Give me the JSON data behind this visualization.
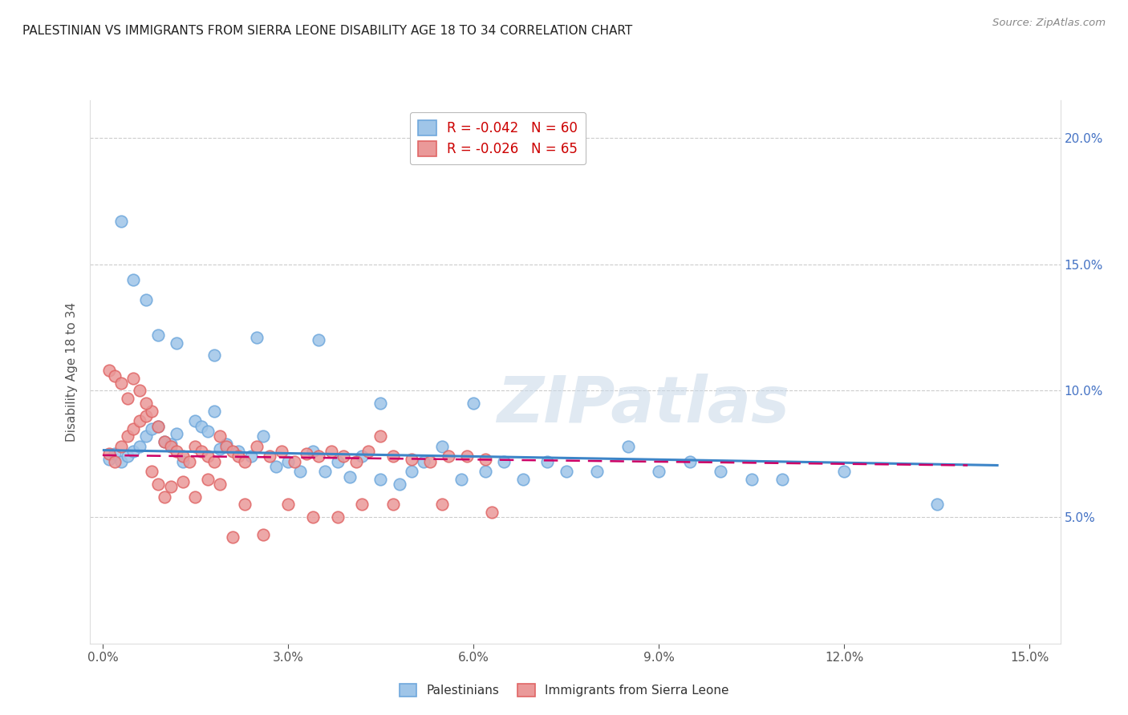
{
  "title": "PALESTINIAN VS IMMIGRANTS FROM SIERRA LEONE DISABILITY AGE 18 TO 34 CORRELATION CHART",
  "source": "Source: ZipAtlas.com",
  "ylabel": "Disability Age 18 to 34",
  "xlim": [
    -0.002,
    0.155
  ],
  "ylim": [
    0.0,
    0.215
  ],
  "xticks": [
    0.0,
    0.03,
    0.06,
    0.09,
    0.12,
    0.15
  ],
  "yticks": [
    0.05,
    0.1,
    0.15,
    0.2
  ],
  "blue_color": "#9fc5e8",
  "blue_edge_color": "#6fa8dc",
  "pink_color": "#ea9999",
  "pink_edge_color": "#e06666",
  "blue_line_color": "#3d85c8",
  "pink_line_color": "#cc0066",
  "legend_r_color": "#cc0000",
  "legend_n_color": "#0000cc",
  "blue_scatter_x": [
    0.001,
    0.002,
    0.003,
    0.004,
    0.005,
    0.006,
    0.007,
    0.008,
    0.009,
    0.01,
    0.011,
    0.012,
    0.013,
    0.015,
    0.016,
    0.017,
    0.018,
    0.019,
    0.02,
    0.022,
    0.024,
    0.026,
    0.028,
    0.03,
    0.032,
    0.034,
    0.036,
    0.038,
    0.04,
    0.042,
    0.045,
    0.048,
    0.05,
    0.052,
    0.055,
    0.058,
    0.062,
    0.065,
    0.068,
    0.072,
    0.075,
    0.08,
    0.085,
    0.09,
    0.095,
    0.1,
    0.105,
    0.11,
    0.12,
    0.135,
    0.003,
    0.005,
    0.007,
    0.009,
    0.012,
    0.018,
    0.025,
    0.035,
    0.045,
    0.06
  ],
  "blue_scatter_y": [
    0.073,
    0.075,
    0.072,
    0.074,
    0.076,
    0.078,
    0.082,
    0.085,
    0.086,
    0.08,
    0.079,
    0.083,
    0.072,
    0.088,
    0.086,
    0.084,
    0.092,
    0.077,
    0.079,
    0.076,
    0.074,
    0.082,
    0.07,
    0.072,
    0.068,
    0.076,
    0.068,
    0.072,
    0.066,
    0.074,
    0.065,
    0.063,
    0.068,
    0.072,
    0.078,
    0.065,
    0.068,
    0.072,
    0.065,
    0.072,
    0.068,
    0.068,
    0.078,
    0.068,
    0.072,
    0.068,
    0.065,
    0.065,
    0.068,
    0.055,
    0.167,
    0.144,
    0.136,
    0.122,
    0.119,
    0.114,
    0.121,
    0.12,
    0.095,
    0.095
  ],
  "pink_scatter_x": [
    0.001,
    0.002,
    0.003,
    0.004,
    0.005,
    0.006,
    0.007,
    0.008,
    0.009,
    0.01,
    0.011,
    0.012,
    0.013,
    0.014,
    0.015,
    0.016,
    0.017,
    0.018,
    0.019,
    0.02,
    0.021,
    0.022,
    0.023,
    0.025,
    0.027,
    0.029,
    0.031,
    0.033,
    0.035,
    0.037,
    0.039,
    0.041,
    0.043,
    0.045,
    0.047,
    0.05,
    0.053,
    0.056,
    0.059,
    0.062,
    0.001,
    0.002,
    0.003,
    0.004,
    0.005,
    0.006,
    0.007,
    0.008,
    0.009,
    0.01,
    0.011,
    0.013,
    0.015,
    0.017,
    0.019,
    0.021,
    0.023,
    0.026,
    0.03,
    0.034,
    0.038,
    0.042,
    0.047,
    0.055,
    0.063
  ],
  "pink_scatter_y": [
    0.075,
    0.072,
    0.078,
    0.082,
    0.085,
    0.088,
    0.09,
    0.092,
    0.086,
    0.08,
    0.078,
    0.076,
    0.074,
    0.072,
    0.078,
    0.076,
    0.074,
    0.072,
    0.082,
    0.078,
    0.076,
    0.074,
    0.072,
    0.078,
    0.074,
    0.076,
    0.072,
    0.075,
    0.074,
    0.076,
    0.074,
    0.072,
    0.076,
    0.082,
    0.074,
    0.073,
    0.072,
    0.074,
    0.074,
    0.073,
    0.108,
    0.106,
    0.103,
    0.097,
    0.105,
    0.1,
    0.095,
    0.068,
    0.063,
    0.058,
    0.062,
    0.064,
    0.058,
    0.065,
    0.063,
    0.042,
    0.055,
    0.043,
    0.055,
    0.05,
    0.05,
    0.055,
    0.055,
    0.055,
    0.052
  ],
  "blue_line_x": [
    0.0,
    0.145
  ],
  "blue_line_y": [
    0.0765,
    0.0705
  ],
  "pink_line_x": [
    0.0,
    0.14
  ],
  "pink_line_y": [
    0.0745,
    0.0705
  ],
  "watermark_text": "ZIPatlas",
  "legend_blue_label": "R = -0.042   N = 60",
  "legend_pink_label": "R = -0.026   N = 65",
  "bottom_legend_blue": "Palestinians",
  "bottom_legend_pink": "Immigrants from Sierra Leone"
}
